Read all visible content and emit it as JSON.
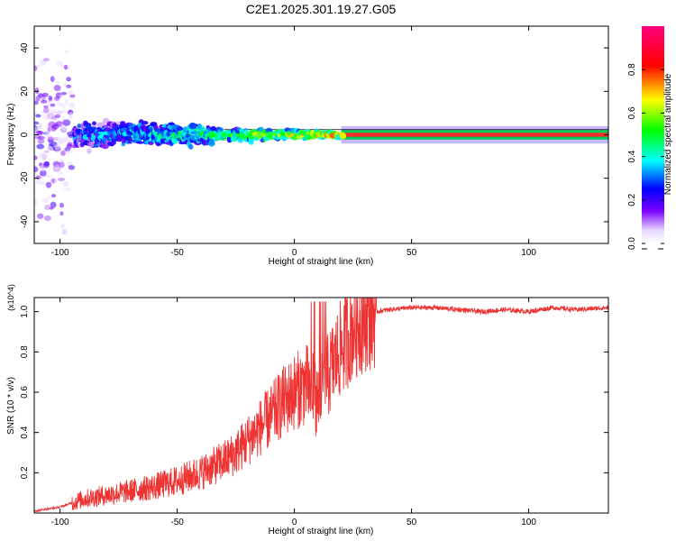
{
  "title": "C2E1.2025.301.19.27.G05",
  "chart_data": [
    {
      "type": "heatmap",
      "xlabel": "Height of straight line (km)",
      "ylabel": "Frequency (Hz)",
      "xlim": [
        -111,
        134
      ],
      "ylim": [
        -50,
        50
      ],
      "xticks": [
        -100,
        -50,
        0,
        50,
        100
      ],
      "yticks": [
        -40,
        -20,
        0,
        20,
        40
      ],
      "colorbar": {
        "label": "Normalized spectral amplitude",
        "range": [
          0,
          1
        ],
        "ticks": [
          0.0,
          0.2,
          0.4,
          0.6,
          0.8
        ],
        "tick_labels": [
          "0.0",
          "0.2",
          "0.4",
          "0.6",
          "0.8"
        ],
        "colors": [
          "#ffffff",
          "#7b00ff",
          "#0000ff",
          "#00ffff",
          "#00ff00",
          "#ffff00",
          "#ff0000",
          "#ff007f"
        ]
      },
      "description_bands": [
        {
          "x": [
            -111,
            -95
          ],
          "freq_spread": 50,
          "amplitude": 0.15
        },
        {
          "x": [
            -95,
            -35
          ],
          "freq_spread": 8,
          "amplitude": 0.35
        },
        {
          "x": [
            -35,
            20
          ],
          "freq_spread": 3,
          "amplitude": 0.6
        },
        {
          "x": [
            20,
            134
          ],
          "freq_spread": 1,
          "amplitude": 0.85
        }
      ]
    },
    {
      "type": "line",
      "xlabel": "Height of straight line (km)",
      "ylabel": "SNR (10 * v/v)",
      "multiplier": "(x10^4)",
      "xlim": [
        -111,
        134
      ],
      "ylim": [
        0.0,
        1.07
      ],
      "xticks": [
        -100,
        -50,
        0,
        50,
        100
      ],
      "yticks": [
        0.2,
        0.4,
        0.6,
        0.8,
        1.0
      ],
      "series": [
        {
          "name": "SNR",
          "color": "#ee3333",
          "x": [
            -111,
            -100,
            -95,
            -90,
            -80,
            -70,
            -60,
            -50,
            -40,
            -30,
            -25,
            -20,
            -15,
            -10,
            -5,
            0,
            5,
            8,
            10,
            15,
            20,
            25,
            30,
            35,
            40,
            50,
            60,
            70,
            80,
            90,
            100,
            110,
            120,
            134
          ],
          "y": [
            0.01,
            0.03,
            0.05,
            0.07,
            0.09,
            0.11,
            0.13,
            0.16,
            0.2,
            0.26,
            0.3,
            0.36,
            0.42,
            0.48,
            0.55,
            0.6,
            0.64,
            0.6,
            0.55,
            0.7,
            0.82,
            0.92,
            0.98,
            1.0,
            1.01,
            1.02,
            1.02,
            1.01,
            1.0,
            1.01,
            1.0,
            1.02,
            1.01,
            1.02
          ]
        }
      ]
    }
  ]
}
